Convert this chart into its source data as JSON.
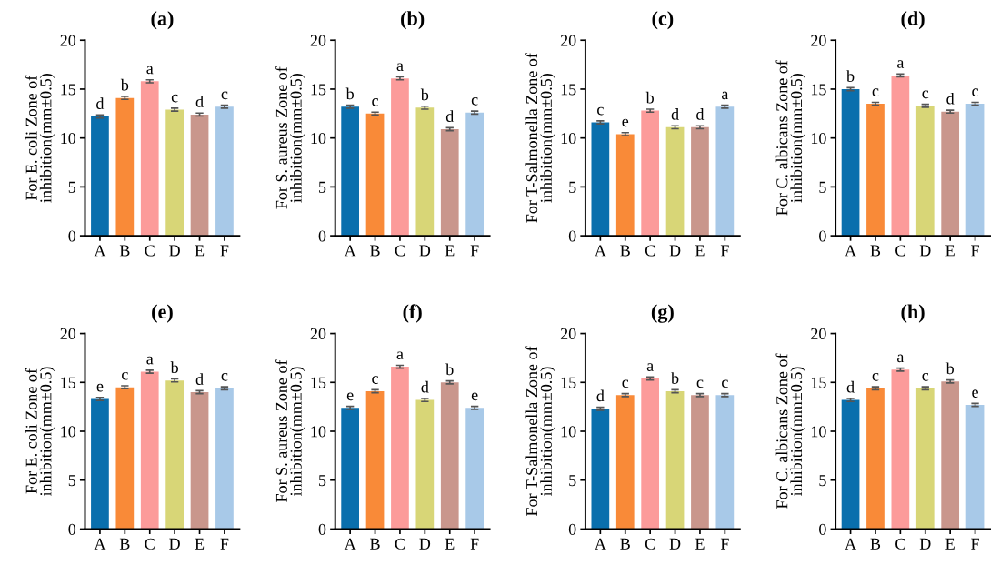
{
  "chart_data": [
    {
      "type": "bar",
      "title": "(a)",
      "ylabel": "For E. coli Zone of\ninhibition(mm±0.5)",
      "categories": [
        "A",
        "B",
        "C",
        "D",
        "E",
        "F"
      ],
      "values": [
        12.2,
        14.1,
        15.8,
        12.9,
        12.4,
        13.2
      ],
      "errors": [
        0.15,
        0.15,
        0.15,
        0.15,
        0.15,
        0.15
      ],
      "colors": [
        "#0a6fad",
        "#f98a38",
        "#fc9b9a",
        "#d8d677",
        "#c9968c",
        "#a8c9e8"
      ],
      "ylim": [
        0,
        20
      ],
      "yticks": [
        0,
        5,
        10,
        15,
        20
      ],
      "grid": false,
      "legend": false,
      "annotations": [
        {
          "text": "d",
          "x": "A",
          "y": 12.2
        },
        {
          "text": "b",
          "x": "B",
          "y": 14.1
        },
        {
          "text": "a",
          "x": "C",
          "y": 15.8
        },
        {
          "text": "c",
          "x": "D",
          "y": 12.9
        },
        {
          "text": "d",
          "x": "E",
          "y": 12.4
        },
        {
          "text": "c",
          "x": "F",
          "y": 13.2
        }
      ]
    },
    {
      "type": "bar",
      "title": "(b)",
      "ylabel": "For S. aureus Zone of\ninhibition(mm±0.5)",
      "categories": [
        "A",
        "B",
        "C",
        "D",
        "E",
        "F"
      ],
      "values": [
        13.2,
        12.5,
        16.1,
        13.1,
        10.9,
        12.6
      ],
      "errors": [
        0.15,
        0.15,
        0.15,
        0.15,
        0.15,
        0.15
      ],
      "colors": [
        "#0a6fad",
        "#f98a38",
        "#fc9b9a",
        "#d8d677",
        "#c9968c",
        "#a8c9e8"
      ],
      "ylim": [
        0,
        20
      ],
      "yticks": [
        0,
        5,
        10,
        15,
        20
      ],
      "grid": false,
      "legend": false,
      "annotations": [
        {
          "text": "b",
          "x": "A",
          "y": 13.2
        },
        {
          "text": "c",
          "x": "B",
          "y": 12.5
        },
        {
          "text": "a",
          "x": "C",
          "y": 16.1
        },
        {
          "text": "b",
          "x": "D",
          "y": 13.1
        },
        {
          "text": "d",
          "x": "E",
          "y": 10.9
        },
        {
          "text": "c",
          "x": "F",
          "y": 12.6
        }
      ]
    },
    {
      "type": "bar",
      "title": "(c)",
      "ylabel": "For T-Salmonella Zone of\ninhibition(mm±0.5)",
      "categories": [
        "A",
        "B",
        "C",
        "D",
        "E",
        "F"
      ],
      "values": [
        11.6,
        10.4,
        12.8,
        11.1,
        11.1,
        13.2
      ],
      "errors": [
        0.15,
        0.15,
        0.15,
        0.15,
        0.15,
        0.15
      ],
      "colors": [
        "#0a6fad",
        "#f98a38",
        "#fc9b9a",
        "#d8d677",
        "#c9968c",
        "#a8c9e8"
      ],
      "ylim": [
        0,
        20
      ],
      "yticks": [
        0,
        5,
        10,
        15,
        20
      ],
      "grid": false,
      "legend": false,
      "annotations": [
        {
          "text": "c",
          "x": "A",
          "y": 11.6
        },
        {
          "text": "e",
          "x": "B",
          "y": 10.4
        },
        {
          "text": "b",
          "x": "C",
          "y": 12.8
        },
        {
          "text": "d",
          "x": "D",
          "y": 11.1
        },
        {
          "text": "d",
          "x": "E",
          "y": 11.1
        },
        {
          "text": "a",
          "x": "F",
          "y": 13.2
        }
      ]
    },
    {
      "type": "bar",
      "title": "(d)",
      "ylabel": "For C. albicans Zone of\ninhibition(mm±0.5)",
      "categories": [
        "A",
        "B",
        "C",
        "D",
        "E",
        "F"
      ],
      "values": [
        15.0,
        13.5,
        16.4,
        13.3,
        12.7,
        13.5
      ],
      "errors": [
        0.15,
        0.15,
        0.15,
        0.15,
        0.15,
        0.15
      ],
      "colors": [
        "#0a6fad",
        "#f98a38",
        "#fc9b9a",
        "#d8d677",
        "#c9968c",
        "#a8c9e8"
      ],
      "ylim": [
        0,
        20
      ],
      "yticks": [
        0,
        5,
        10,
        15,
        20
      ],
      "grid": false,
      "legend": false,
      "annotations": [
        {
          "text": "b",
          "x": "A",
          "y": 15.0
        },
        {
          "text": "c",
          "x": "B",
          "y": 13.5
        },
        {
          "text": "a",
          "x": "C",
          "y": 16.4
        },
        {
          "text": "c",
          "x": "D",
          "y": 13.3
        },
        {
          "text": "d",
          "x": "E",
          "y": 12.7
        },
        {
          "text": "c",
          "x": "F",
          "y": 13.5
        }
      ]
    },
    {
      "type": "bar",
      "title": "(e)",
      "ylabel": "For E. coli Zone of\ninhibition(mm±0.5)",
      "categories": [
        "A",
        "B",
        "C",
        "D",
        "E",
        "F"
      ],
      "values": [
        13.3,
        14.5,
        16.1,
        15.2,
        14.0,
        14.4
      ],
      "errors": [
        0.15,
        0.15,
        0.15,
        0.15,
        0.15,
        0.15
      ],
      "colors": [
        "#0a6fad",
        "#f98a38",
        "#fc9b9a",
        "#d8d677",
        "#c9968c",
        "#a8c9e8"
      ],
      "ylim": [
        0,
        20
      ],
      "yticks": [
        0,
        5,
        10,
        15,
        20
      ],
      "grid": false,
      "legend": false,
      "annotations": [
        {
          "text": "e",
          "x": "A",
          "y": 13.3
        },
        {
          "text": "c",
          "x": "B",
          "y": 14.5
        },
        {
          "text": "a",
          "x": "C",
          "y": 16.1
        },
        {
          "text": "b",
          "x": "D",
          "y": 15.2
        },
        {
          "text": "d",
          "x": "E",
          "y": 14.0
        },
        {
          "text": "c",
          "x": "F",
          "y": 14.4
        }
      ]
    },
    {
      "type": "bar",
      "title": "(f)",
      "ylabel": "For S. aureus Zone of\ninhibition(mm±0.5)",
      "categories": [
        "A",
        "B",
        "C",
        "D",
        "E",
        "F"
      ],
      "values": [
        12.4,
        14.1,
        16.6,
        13.2,
        15.0,
        12.4
      ],
      "errors": [
        0.15,
        0.15,
        0.15,
        0.15,
        0.15,
        0.15
      ],
      "colors": [
        "#0a6fad",
        "#f98a38",
        "#fc9b9a",
        "#d8d677",
        "#c9968c",
        "#a8c9e8"
      ],
      "ylim": [
        0,
        20
      ],
      "yticks": [
        0,
        5,
        10,
        15,
        20
      ],
      "grid": false,
      "legend": false,
      "annotations": [
        {
          "text": "e",
          "x": "A",
          "y": 12.4
        },
        {
          "text": "c",
          "x": "B",
          "y": 14.1
        },
        {
          "text": "a",
          "x": "C",
          "y": 16.6
        },
        {
          "text": "d",
          "x": "D",
          "y": 13.2
        },
        {
          "text": "b",
          "x": "E",
          "y": 15.0
        },
        {
          "text": "e",
          "x": "F",
          "y": 12.4
        }
      ]
    },
    {
      "type": "bar",
      "title": "(g)",
      "ylabel": "For T-Salmonella Zone of\ninhibition(mm±0.5)",
      "categories": [
        "A",
        "B",
        "C",
        "D",
        "E",
        "F"
      ],
      "values": [
        12.3,
        13.7,
        15.4,
        14.1,
        13.7,
        13.7
      ],
      "errors": [
        0.15,
        0.15,
        0.15,
        0.15,
        0.15,
        0.15
      ],
      "colors": [
        "#0a6fad",
        "#f98a38",
        "#fc9b9a",
        "#d8d677",
        "#c9968c",
        "#a8c9e8"
      ],
      "ylim": [
        0,
        20
      ],
      "yticks": [
        0,
        5,
        10,
        15,
        20
      ],
      "grid": false,
      "legend": false,
      "annotations": [
        {
          "text": "d",
          "x": "A",
          "y": 12.3
        },
        {
          "text": "c",
          "x": "B",
          "y": 13.7
        },
        {
          "text": "a",
          "x": "C",
          "y": 15.4
        },
        {
          "text": "b",
          "x": "D",
          "y": 14.1
        },
        {
          "text": "c",
          "x": "E",
          "y": 13.7
        },
        {
          "text": "c",
          "x": "F",
          "y": 13.7
        }
      ]
    },
    {
      "type": "bar",
      "title": "(h)",
      "ylabel": "For C. albicans Zone of\ninhibition(mm±0.5)",
      "categories": [
        "A",
        "B",
        "C",
        "D",
        "E",
        "F"
      ],
      "values": [
        13.2,
        14.4,
        16.3,
        14.4,
        15.1,
        12.7
      ],
      "errors": [
        0.15,
        0.15,
        0.15,
        0.15,
        0.15,
        0.15
      ],
      "colors": [
        "#0a6fad",
        "#f98a38",
        "#fc9b9a",
        "#d8d677",
        "#c9968c",
        "#a8c9e8"
      ],
      "ylim": [
        0,
        20
      ],
      "yticks": [
        0,
        5,
        10,
        15,
        20
      ],
      "grid": false,
      "legend": false,
      "annotations": [
        {
          "text": "d",
          "x": "A",
          "y": 13.2
        },
        {
          "text": "c",
          "x": "B",
          "y": 14.4
        },
        {
          "text": "a",
          "x": "C",
          "y": 16.3
        },
        {
          "text": "c",
          "x": "D",
          "y": 14.4
        },
        {
          "text": "b",
          "x": "E",
          "y": 15.1
        },
        {
          "text": "e",
          "x": "F",
          "y": 12.7
        }
      ]
    }
  ]
}
